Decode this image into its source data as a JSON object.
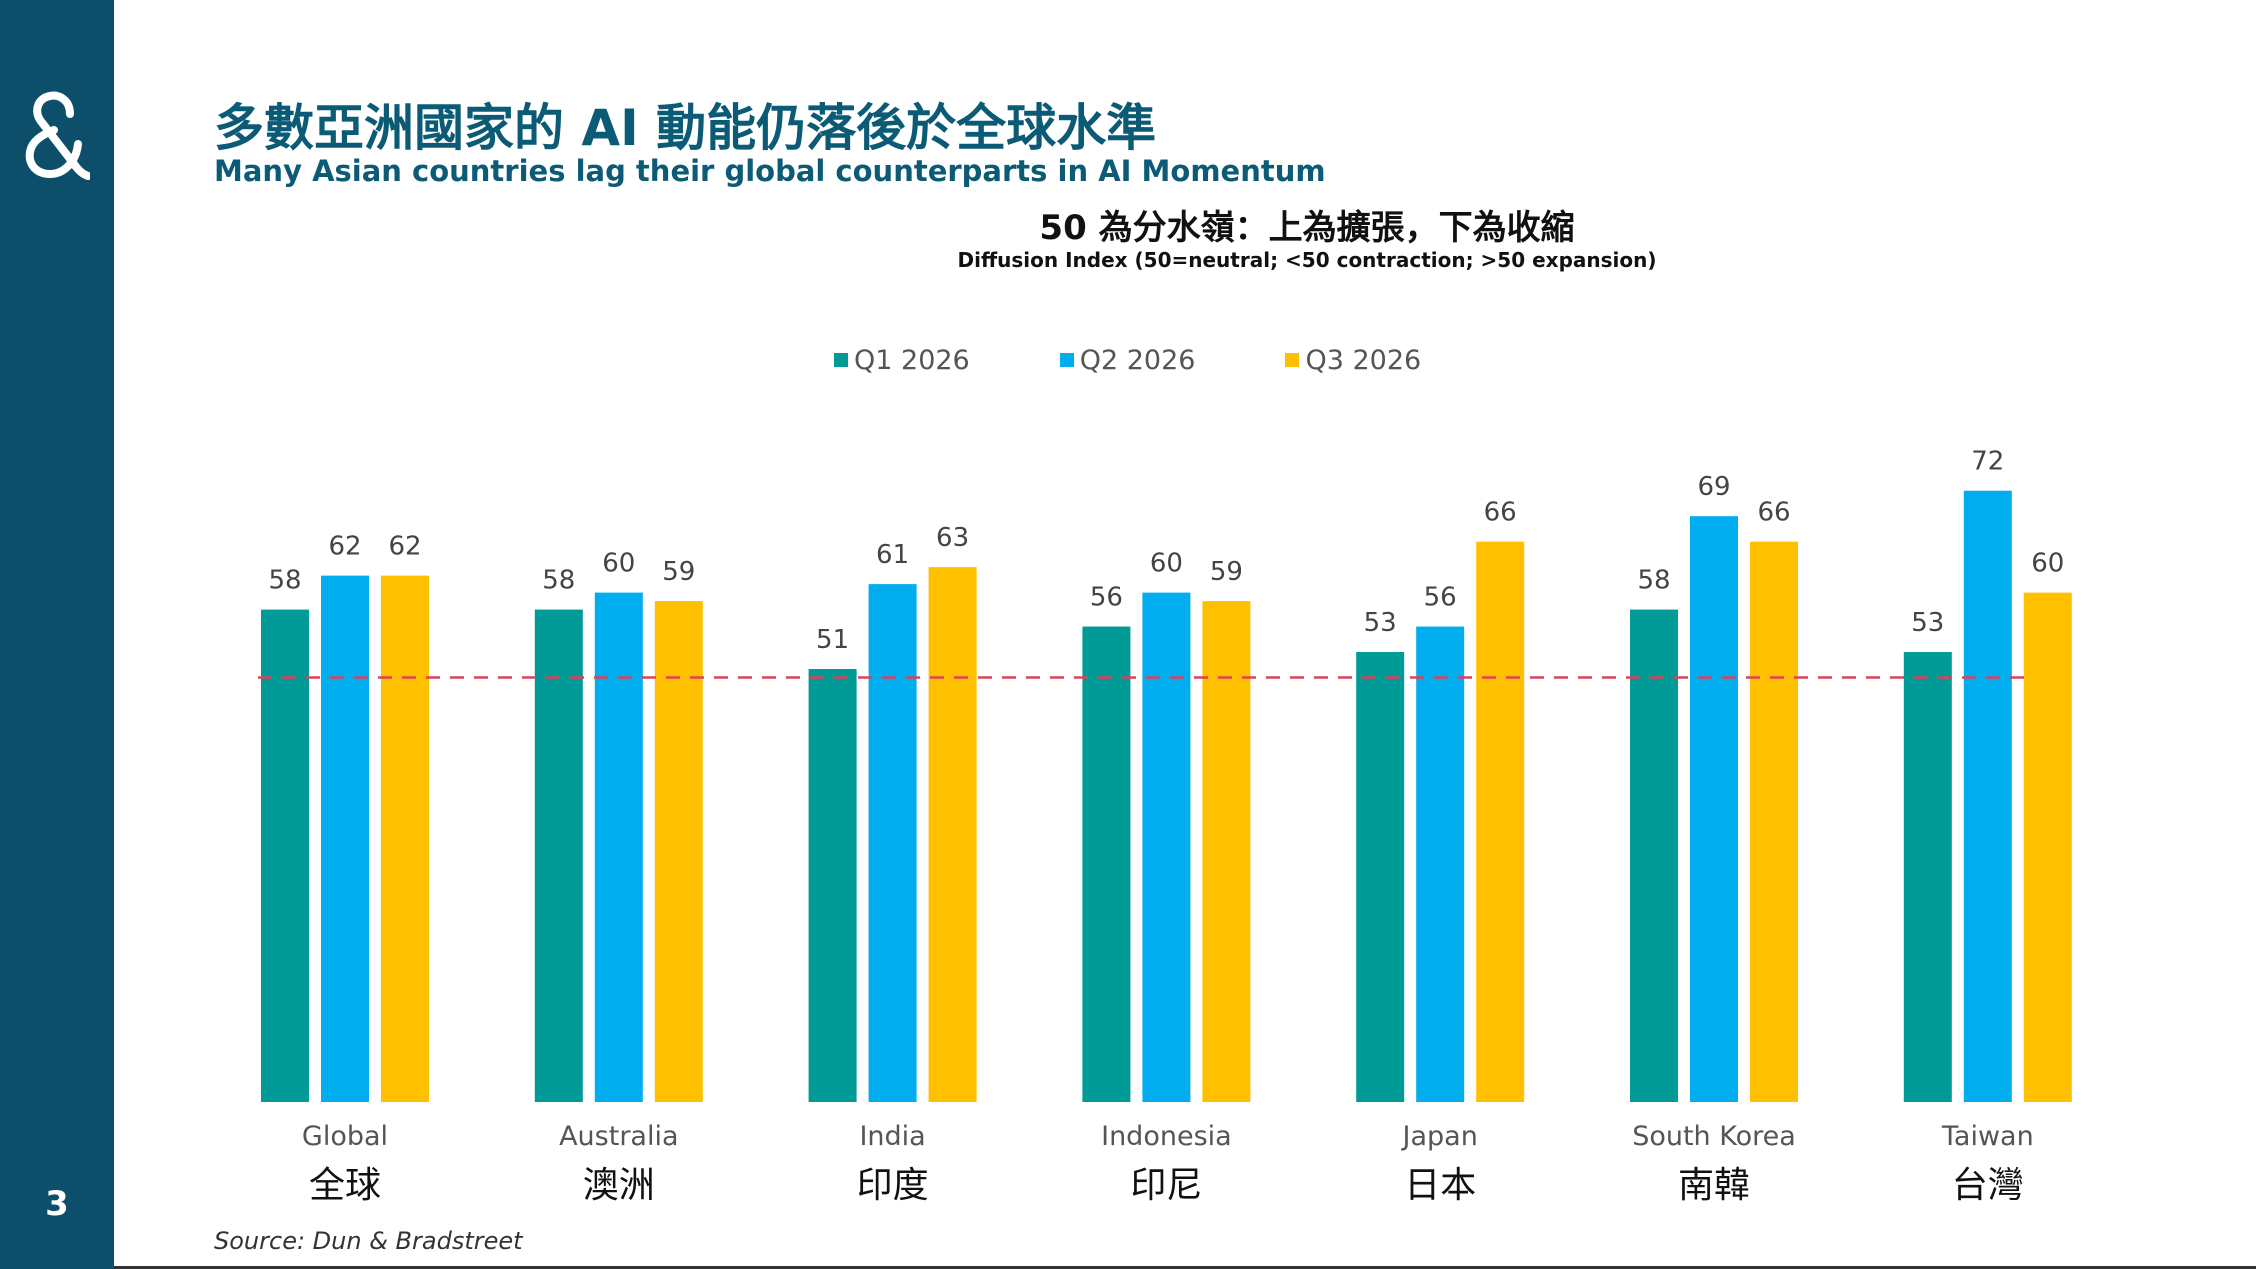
{
  "page": {
    "number": "3"
  },
  "header": {
    "title_zh": "多數亞洲國家的 AI 動能仍落後於全球水準",
    "title_en": "Many Asian countries lag their global counterparts in AI Momentum"
  },
  "chart_subtitle": {
    "zh": "50 為分水嶺：上為擴張，下為收縮",
    "en": "Diffusion Index (50=neutral; <50 contraction; >50 expansion)"
  },
  "source": "Source: Dun & Bradstreet",
  "colors": {
    "sidebar": "#0d4f6b",
    "title": "#0b5b76",
    "q1": "#009b96",
    "q2": "#00adee",
    "q3": "#ffc000",
    "neutral_line": "#e0405a"
  },
  "icons": {
    "logo": "ampersand-logo-icon"
  },
  "chart_data": {
    "type": "bar",
    "categories": [
      "Global",
      "Australia",
      "India",
      "Indonesia",
      "Japan",
      "South Korea",
      "Taiwan"
    ],
    "categories_zh": [
      "全球",
      "澳洲",
      "印度",
      "印尼",
      "日本",
      "南韓",
      "台灣"
    ],
    "series": [
      {
        "name": "Q1 2026",
        "color": "#009b96",
        "values": [
          58,
          58,
          51,
          56,
          53,
          58,
          53
        ]
      },
      {
        "name": "Q2 2026",
        "color": "#00adee",
        "values": [
          62,
          60,
          61,
          60,
          56,
          69,
          72
        ]
      },
      {
        "name": "Q3 2026",
        "color": "#ffc000",
        "values": [
          62,
          59,
          63,
          59,
          66,
          66,
          60
        ]
      }
    ],
    "reference_line": {
      "value": 50,
      "style": "dashed",
      "color": "#e0405a"
    },
    "ylim": [
      0,
      80
    ],
    "grid": false,
    "legend_position": "top-center",
    "title": "50 為分水嶺：上為擴張，下為收縮",
    "subtitle": "Diffusion Index (50=neutral; <50 contraction; >50 expansion)",
    "xlabel": "",
    "ylabel": ""
  }
}
